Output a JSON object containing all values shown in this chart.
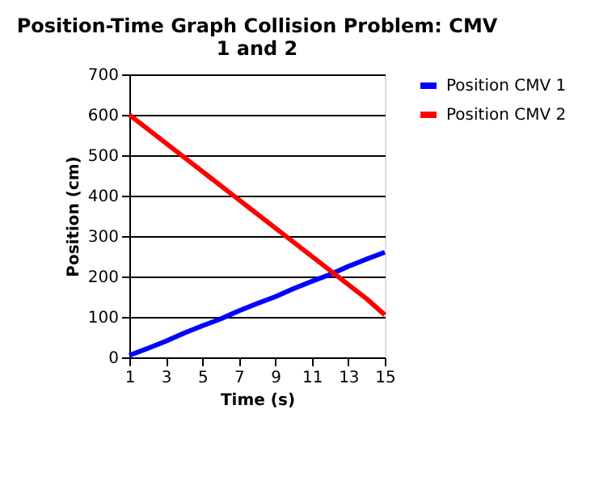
{
  "chart_data": {
    "type": "line",
    "title": [
      "Position-Time Graph Collision Problem: CMV",
      "1 and 2"
    ],
    "xlabel": "Time (s)",
    "ylabel": "Position (cm)",
    "x": [
      1,
      2,
      3,
      4,
      5,
      6,
      7,
      8,
      9,
      10,
      11,
      12,
      13,
      14,
      15
    ],
    "series": [
      {
        "name": "Position CMV 1",
        "color": "#0000ff",
        "values": [
          5,
          22,
          40,
          60,
          78,
          95,
          115,
          133,
          150,
          170,
          188,
          205,
          225,
          243,
          260
        ]
      },
      {
        "name": "Position CMV 2",
        "color": "#ff0000",
        "values": [
          600,
          565,
          530,
          495,
          460,
          425,
          390,
          355,
          320,
          285,
          250,
          215,
          180,
          145,
          105
        ]
      }
    ],
    "xlim": [
      1,
      15
    ],
    "xticks": [
      1,
      3,
      5,
      7,
      9,
      11,
      13,
      15
    ],
    "ylim": [
      0,
      700
    ],
    "yticks": [
      0,
      100,
      200,
      300,
      400,
      500,
      600,
      700
    ],
    "grid": "y",
    "legend": "right",
    "marker": "none",
    "line_style": "solid"
  }
}
